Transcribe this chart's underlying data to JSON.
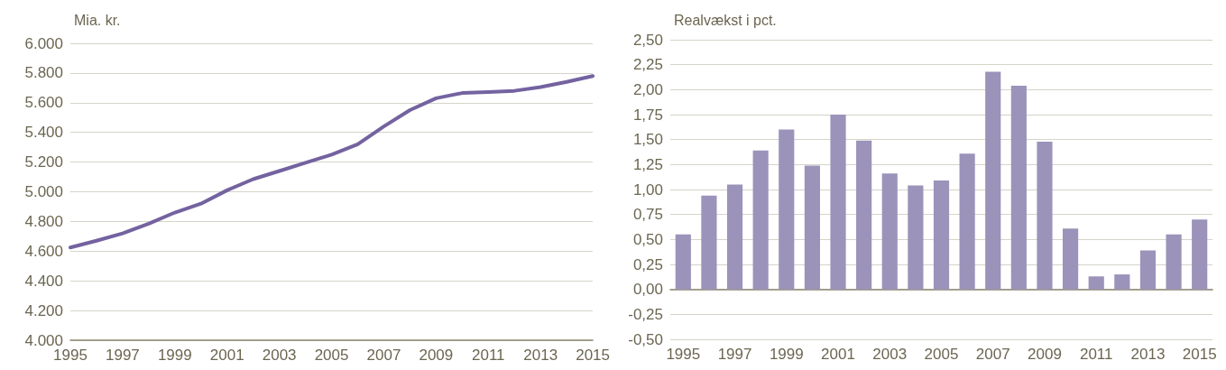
{
  "chart_data": [
    {
      "type": "line",
      "ylabel": "Mia. kr.",
      "x": [
        1995,
        1996,
        1997,
        1998,
        1999,
        2000,
        2001,
        2002,
        2003,
        2004,
        2005,
        2006,
        2007,
        2008,
        2009,
        2010,
        2011,
        2012,
        2013,
        2014,
        2015
      ],
      "series": [
        {
          "color": "#7462a0",
          "values": [
            4625,
            4670,
            4720,
            4785,
            4860,
            4920,
            5010,
            5085,
            5140,
            5195,
            5250,
            5320,
            5440,
            5550,
            5630,
            5665,
            5672,
            5680,
            5705,
            5740,
            5780
          ]
        }
      ],
      "xlim": [
        1995,
        2015
      ],
      "xticks": [
        1995,
        1997,
        1999,
        2001,
        2003,
        2005,
        2007,
        2009,
        2011,
        2013,
        2015
      ],
      "ylim": [
        4000,
        6000
      ],
      "yticks": [
        {
          "value": 4000,
          "label": "4.000"
        },
        {
          "value": 4200,
          "label": "4.200"
        },
        {
          "value": 4400,
          "label": "4.400"
        },
        {
          "value": 4600,
          "label": "4.600"
        },
        {
          "value": 4800,
          "label": "4.800"
        },
        {
          "value": 5000,
          "label": "5.000"
        },
        {
          "value": 5200,
          "label": "5.200"
        },
        {
          "value": 5400,
          "label": "5.400"
        },
        {
          "value": 5600,
          "label": "5.600"
        },
        {
          "value": 5800,
          "label": "5.800"
        },
        {
          "value": 6000,
          "label": "6.000"
        }
      ],
      "grid": "y",
      "marker": "none",
      "line_style": "solid"
    },
    {
      "type": "bar",
      "ylabel": "Realvækst i pct.",
      "categories": [
        "1995",
        null,
        "1997",
        null,
        "1999",
        null,
        "2001",
        null,
        "2003",
        null,
        "2005",
        null,
        "2007",
        null,
        "2009",
        null,
        "2011",
        null,
        "2013",
        null,
        "2015"
      ],
      "series": [
        {
          "color": "#9b93b9",
          "values": [
            0.55,
            0.94,
            1.05,
            1.39,
            1.6,
            1.24,
            1.75,
            1.49,
            1.16,
            1.04,
            1.09,
            1.36,
            2.18,
            2.04,
            1.48,
            0.61,
            0.13,
            0.15,
            0.39,
            0.55,
            0.7
          ]
        }
      ],
      "ylim": [
        -0.5,
        2.5
      ],
      "yticks": [
        {
          "value": -0.5,
          "label": "-0,50"
        },
        {
          "value": -0.25,
          "label": "-0,25"
        },
        {
          "value": 0,
          "label": "0,00"
        },
        {
          "value": 0.25,
          "label": "0,25"
        },
        {
          "value": 0.5,
          "label": "0,50"
        },
        {
          "value": 0.75,
          "label": "0,75"
        },
        {
          "value": 1,
          "label": "1,00"
        },
        {
          "value": 1.25,
          "label": "1,25"
        },
        {
          "value": 1.5,
          "label": "1,50"
        },
        {
          "value": 1.75,
          "label": "1,75"
        },
        {
          "value": 2,
          "label": "2,00"
        },
        {
          "value": 2.25,
          "label": "2,25"
        },
        {
          "value": 2.5,
          "label": "2,50"
        }
      ],
      "grid": "y"
    }
  ]
}
